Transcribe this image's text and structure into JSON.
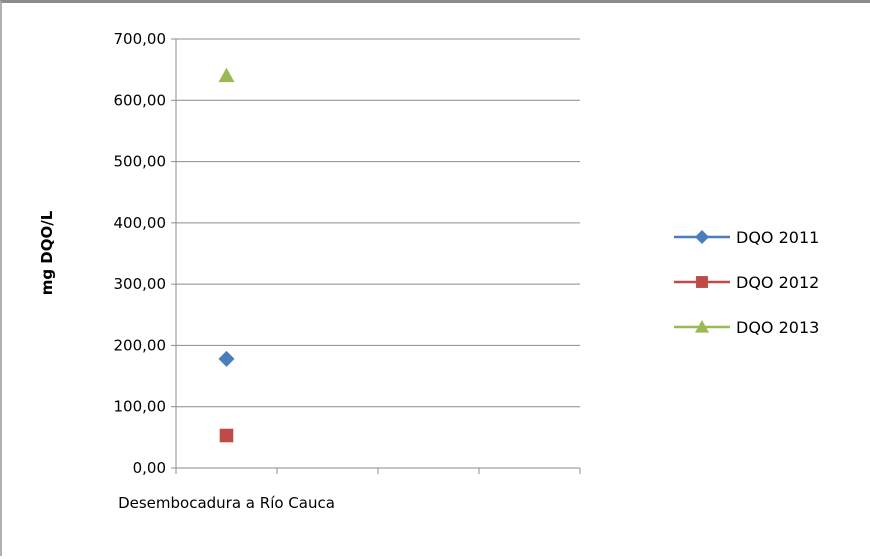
{
  "chart_data": {
    "type": "scatter",
    "title": "",
    "xlabel": "",
    "ylabel": "mg DQO/L",
    "categories": [
      "Desembocadura a Río Cauca",
      "",
      "",
      ""
    ],
    "ylim": [
      0,
      700
    ],
    "yticks": [
      "0,00",
      "100,00",
      "200,00",
      "300,00",
      "400,00",
      "500,00",
      "600,00",
      "700,00"
    ],
    "grid": true,
    "legend_position": "right",
    "series": [
      {
        "name": "DQO 2011",
        "color": "#4a7ebb",
        "marker": "diamond",
        "values": [
          178
        ]
      },
      {
        "name": "DQO 2012",
        "color": "#be4b48",
        "marker": "square",
        "values": [
          53
        ]
      },
      {
        "name": "DQO 2013",
        "color": "#98b954",
        "marker": "triangle",
        "values": [
          640
        ]
      }
    ]
  }
}
